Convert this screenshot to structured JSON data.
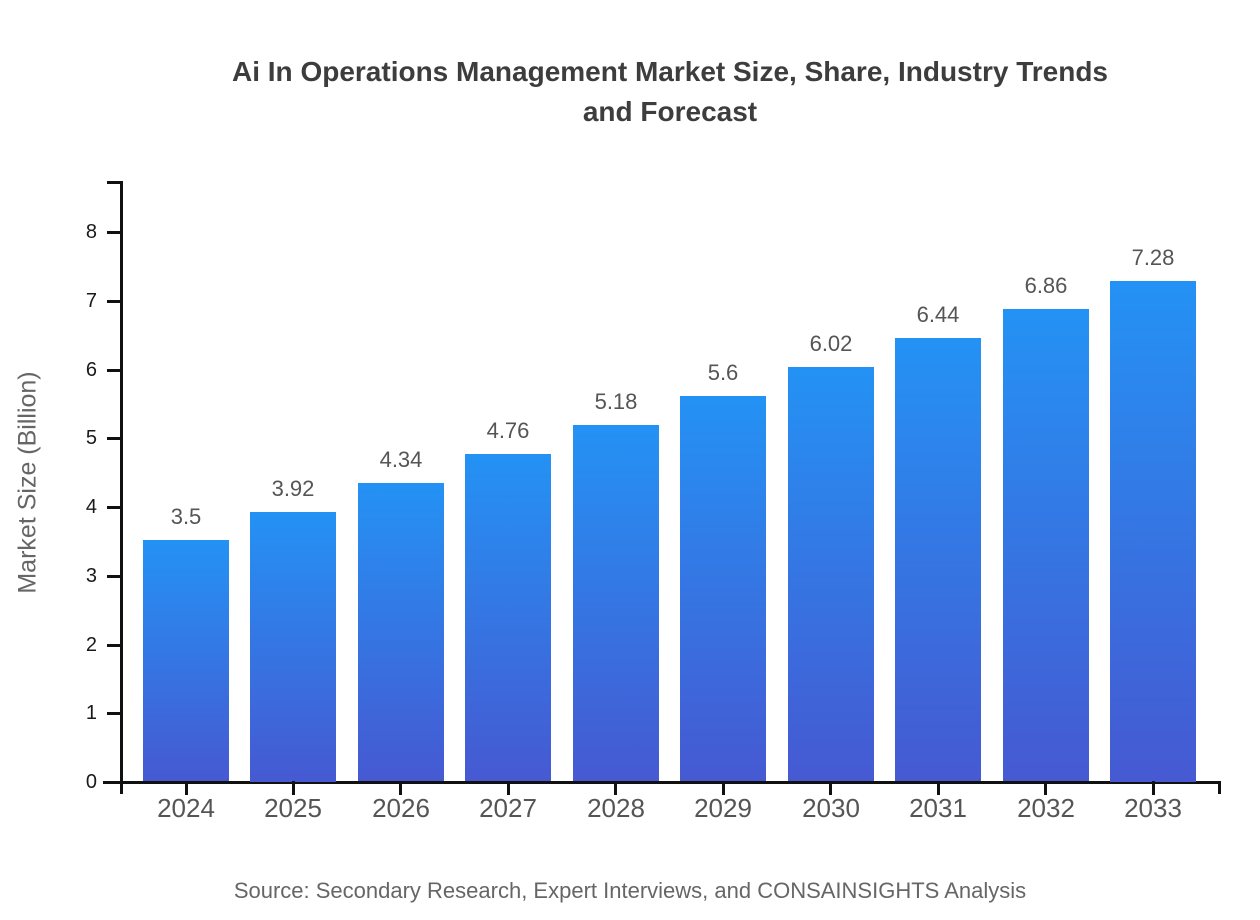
{
  "chart_data": {
    "type": "bar",
    "title": "Ai In Operations Management Market Size, Share, Industry Trends and Forecast",
    "categories": [
      "2024",
      "2025",
      "2026",
      "2027",
      "2028",
      "2029",
      "2030",
      "2031",
      "2032",
      "2033"
    ],
    "values": [
      3.5,
      3.92,
      4.34,
      4.76,
      5.18,
      5.6,
      6.02,
      6.44,
      6.86,
      7.28
    ],
    "value_labels": [
      "3.5",
      "3.92",
      "4.34",
      "4.76",
      "5.18",
      "5.6",
      "6.02",
      "6.44",
      "6.86",
      "7.28"
    ],
    "xlabel": "",
    "ylabel": "Market Size (Billion)",
    "ylim": [
      0,
      8
    ],
    "yticks": [
      0,
      1,
      2,
      3,
      4,
      5,
      6,
      7,
      8
    ],
    "grid": false,
    "legend": "none",
    "colors": {
      "bar_gradient_top": "#2492f4",
      "bar_gradient_bottom": "#4659d2",
      "axis": "#111111",
      "title_text": "#3d3d3d",
      "tick_text": "#555555",
      "value_label_text": "#555555"
    }
  },
  "footer": {
    "source": "Source: Secondary Research, Expert Interviews, and CONSAINSIGHTS Analysis"
  }
}
